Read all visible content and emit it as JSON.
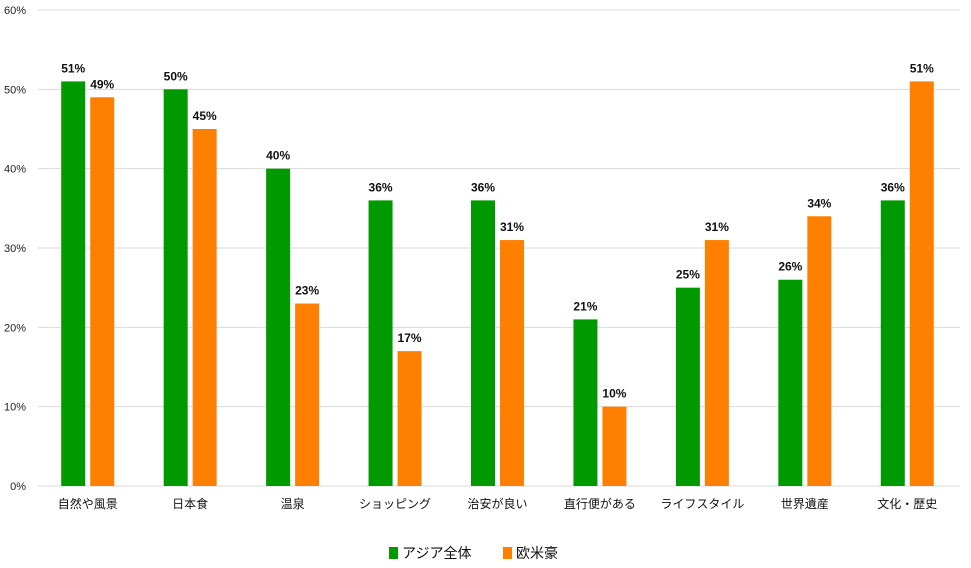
{
  "chart_data": {
    "type": "bar",
    "title": "",
    "xlabel": "",
    "ylabel": "",
    "ylim": [
      0,
      60
    ],
    "yticks": [
      "0%",
      "10%",
      "20%",
      "30%",
      "40%",
      "50%",
      "60%"
    ],
    "grid": true,
    "legend_position": "bottom",
    "categories": [
      "自然や風景",
      "日本食",
      "温泉",
      "ショッピング",
      "治安が良い",
      "直行便がある",
      "ライフスタイル",
      "世界遺産",
      "文化・歴史"
    ],
    "series": [
      {
        "name": "アジア全体",
        "color": "#009a00",
        "values": [
          51,
          50,
          40,
          36,
          36,
          21,
          25,
          26,
          36
        ]
      },
      {
        "name": "欧米豪",
        "color": "#ff8000",
        "values": [
          49,
          45,
          23,
          17,
          31,
          10,
          31,
          34,
          51
        ]
      }
    ],
    "value_suffix": "%"
  }
}
